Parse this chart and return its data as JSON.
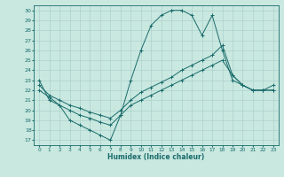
{
  "xlabel": "Humidex (Indice chaleur)",
  "xlim": [
    -0.5,
    23.5
  ],
  "ylim": [
    16.5,
    30.5
  ],
  "yticks": [
    17,
    18,
    19,
    20,
    21,
    22,
    23,
    24,
    25,
    26,
    27,
    28,
    29,
    30
  ],
  "xticks": [
    0,
    1,
    2,
    3,
    4,
    5,
    6,
    7,
    8,
    9,
    10,
    11,
    12,
    13,
    14,
    15,
    16,
    17,
    18,
    19,
    20,
    21,
    22,
    23
  ],
  "bg_color": "#c8e8e0",
  "line_color": "#1a6b6b",
  "grid_color": "#a8ccc8",
  "line1_x": [
    0,
    1,
    2,
    3,
    4,
    5,
    6,
    7,
    8,
    9,
    10,
    11,
    12,
    13,
    14,
    15,
    16,
    17,
    18,
    19,
    20,
    21,
    22,
    23
  ],
  "line1_y": [
    23.0,
    21.0,
    20.5,
    19.0,
    18.5,
    18.0,
    17.5,
    17.0,
    19.5,
    23.0,
    26.0,
    28.5,
    29.5,
    30.0,
    30.0,
    29.5,
    27.5,
    29.5,
    26.0,
    23.0,
    22.5,
    22.0,
    22.0,
    22.5
  ],
  "line2_x": [
    0,
    1,
    2,
    3,
    4,
    5,
    6,
    7,
    8,
    9,
    10,
    11,
    12,
    13,
    14,
    15,
    16,
    17,
    18,
    19,
    20,
    21,
    22,
    23
  ],
  "line2_y": [
    22.0,
    21.3,
    20.5,
    20.0,
    19.5,
    19.2,
    18.8,
    18.5,
    19.5,
    20.5,
    21.0,
    21.5,
    22.0,
    22.5,
    23.0,
    23.5,
    24.0,
    24.5,
    25.0,
    23.5,
    22.5,
    22.0,
    22.0,
    22.0
  ],
  "line3_x": [
    0,
    1,
    2,
    3,
    4,
    5,
    6,
    7,
    8,
    9,
    10,
    11,
    12,
    13,
    14,
    15,
    16,
    17,
    18,
    19,
    20,
    21,
    22,
    23
  ],
  "line3_y": [
    22.5,
    21.5,
    21.0,
    20.5,
    20.2,
    19.8,
    19.5,
    19.2,
    20.0,
    21.0,
    21.8,
    22.3,
    22.8,
    23.3,
    24.0,
    24.5,
    25.0,
    25.5,
    26.5,
    23.5,
    22.5,
    22.0,
    22.0,
    22.0
  ]
}
